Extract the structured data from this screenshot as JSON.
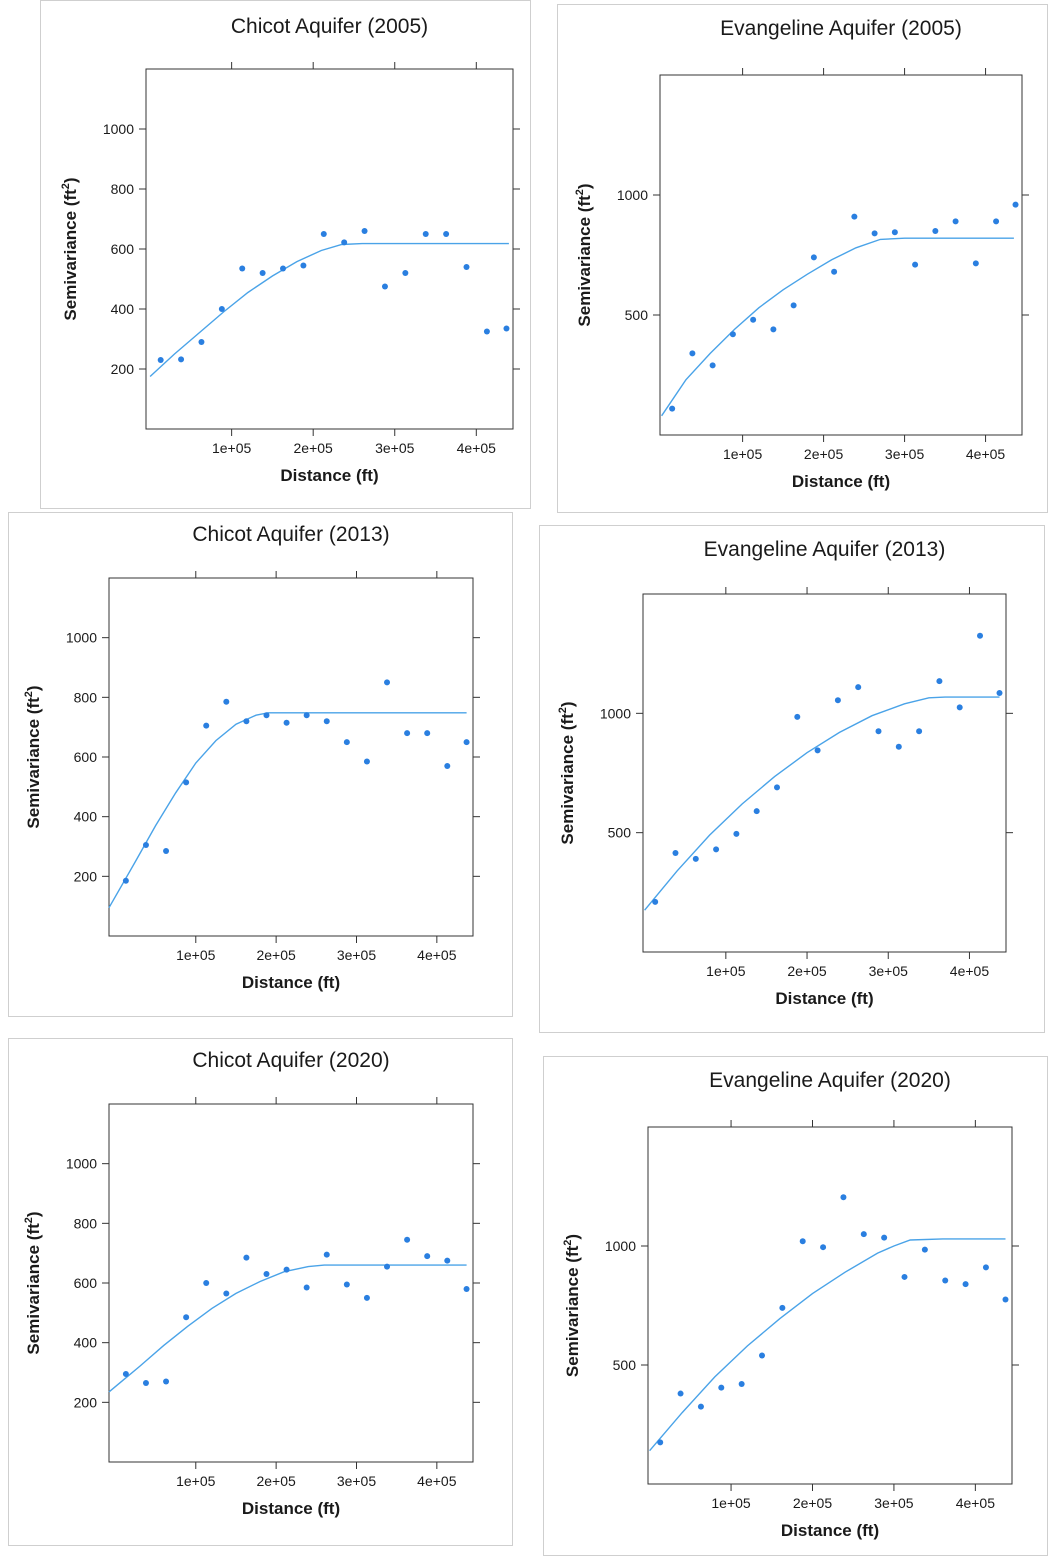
{
  "charts": [
    {
      "title": "Chicot Aquifer (2005)",
      "xlabel": "Distance (ft)",
      "ylabel_main": "Semivariance  (ft",
      "ylabel_sup": "2",
      "ylabel_end": ")",
      "xticks": [
        "1e+05",
        "2e+05",
        "3e+05",
        "4e+05"
      ],
      "yticks": [
        "200",
        "400",
        "600",
        "800",
        "1000"
      ]
    },
    {
      "title": "Evangeline Aquifer (2005)",
      "xlabel": "Distance (ft)",
      "ylabel_main": "Semivariance  (ft",
      "ylabel_sup": "2",
      "ylabel_end": ")",
      "xticks": [
        "1e+05",
        "2e+05",
        "3e+05",
        "4e+05"
      ],
      "yticks": [
        "500",
        "1000"
      ]
    },
    {
      "title": "Chicot Aquifer (2013)",
      "xlabel": "Distance (ft)",
      "ylabel_main": "Semivariance  (ft",
      "ylabel_sup": "2",
      "ylabel_end": ")",
      "xticks": [
        "1e+05",
        "2e+05",
        "3e+05",
        "4e+05"
      ],
      "yticks": [
        "200",
        "400",
        "600",
        "800",
        "1000"
      ]
    },
    {
      "title": "Evangeline Aquifer (2013)",
      "xlabel": "Distance (ft)",
      "ylabel_main": "Semivariance  (ft",
      "ylabel_sup": "2",
      "ylabel_end": ")",
      "xticks": [
        "1e+05",
        "2e+05",
        "3e+05",
        "4e+05"
      ],
      "yticks": [
        "500",
        "1000"
      ]
    },
    {
      "title": "Chicot Aquifer (2020)",
      "xlabel": "Distance (ft)",
      "ylabel_main": "Semivariance  (ft",
      "ylabel_sup": "2",
      "ylabel_end": ")",
      "xticks": [
        "1e+05",
        "2e+05",
        "3e+05",
        "4e+05"
      ],
      "yticks": [
        "200",
        "400",
        "600",
        "800",
        "1000"
      ]
    },
    {
      "title": "Evangeline Aquifer (2020)",
      "xlabel": "Distance (ft)",
      "ylabel_main": "Semivariance  (ft",
      "ylabel_sup": "2",
      "ylabel_end": ")",
      "xticks": [
        "1e+05",
        "2e+05",
        "3e+05",
        "4e+05"
      ],
      "yticks": [
        "500",
        "1000"
      ]
    }
  ],
  "chart_data": [
    {
      "type": "scatter",
      "title": "Chicot Aquifer (2005)",
      "xlabel": "Distance (ft)",
      "ylabel": "Semivariance (ft2)",
      "xlim": [
        -5000,
        445000
      ],
      "ylim": [
        0,
        1200
      ],
      "xticks": [
        100000,
        200000,
        300000,
        400000
      ],
      "yticks": [
        200,
        400,
        600,
        800,
        1000
      ],
      "point_color": "#2a7fe0",
      "line_color": "#4aa3e8",
      "points": {
        "x": [
          13000,
          38000,
          63000,
          88000,
          113000,
          138000,
          163000,
          188000,
          213000,
          238000,
          263000,
          288000,
          313000,
          338000,
          363000,
          388000,
          413000,
          437000
        ],
        "y": [
          230,
          232,
          290,
          400,
          535,
          520,
          535,
          545,
          650,
          622,
          660,
          475,
          520,
          650,
          650,
          540,
          325,
          335
        ]
      },
      "model": {
        "x": [
          0,
          30000,
          60000,
          90000,
          120000,
          150000,
          180000,
          210000,
          235000,
          260000,
          300000,
          350000,
          400000,
          440000
        ],
        "y": [
          175,
          250,
          320,
          390,
          455,
          510,
          558,
          595,
          615,
          618,
          618,
          618,
          618,
          618
        ]
      }
    },
    {
      "type": "scatter",
      "title": "Evangeline Aquifer (2005)",
      "xlabel": "Distance (ft)",
      "ylabel": "Semivariance (ft2)",
      "xlim": [
        -2000,
        445000
      ],
      "ylim": [
        0,
        1500
      ],
      "xticks": [
        100000,
        200000,
        300000,
        400000
      ],
      "yticks": [
        500,
        1000
      ],
      "point_color": "#2a7fe0",
      "line_color": "#4aa3e8",
      "points": {
        "x": [
          13000,
          38000,
          63000,
          88000,
          113000,
          138000,
          163000,
          188000,
          213000,
          238000,
          263000,
          288000,
          313000,
          338000,
          363000,
          388000,
          413000,
          437000
        ],
        "y": [
          110,
          340,
          290,
          420,
          480,
          440,
          540,
          740,
          680,
          910,
          840,
          845,
          710,
          850,
          890,
          715,
          890,
          960
        ]
      },
      "model": {
        "x": [
          0,
          30000,
          60000,
          90000,
          120000,
          150000,
          180000,
          210000,
          240000,
          270000,
          300000,
          350000,
          400000,
          435000
        ],
        "y": [
          80,
          230,
          340,
          440,
          530,
          605,
          670,
          730,
          780,
          815,
          820,
          820,
          820,
          820
        ]
      }
    },
    {
      "type": "scatter",
      "title": "Chicot Aquifer (2013)",
      "xlabel": "Distance (ft)",
      "ylabel": "Semivariance (ft2)",
      "xlim": [
        -8000,
        445000
      ],
      "ylim": [
        0,
        1200
      ],
      "xticks": [
        100000,
        200000,
        300000,
        400000
      ],
      "yticks": [
        200,
        400,
        600,
        800,
        1000
      ],
      "point_color": "#2a7fe0",
      "line_color": "#4aa3e8",
      "points": {
        "x": [
          13000,
          38000,
          63000,
          88000,
          113000,
          138000,
          163000,
          188000,
          213000,
          238000,
          263000,
          288000,
          313000,
          338000,
          363000,
          388000,
          413000,
          437000
        ],
        "y": [
          185,
          305,
          285,
          515,
          705,
          785,
          720,
          740,
          715,
          740,
          720,
          650,
          585,
          850,
          680,
          680,
          570,
          650
        ]
      },
      "model": {
        "x": [
          -8000,
          25000,
          50000,
          75000,
          100000,
          125000,
          150000,
          175000,
          190000,
          220000,
          300000,
          400000,
          437000
        ],
        "y": [
          95,
          250,
          370,
          480,
          580,
          655,
          710,
          740,
          748,
          748,
          748,
          748,
          748
        ]
      }
    },
    {
      "type": "scatter",
      "title": "Evangeline Aquifer (2013)",
      "xlabel": "Distance (ft)",
      "ylabel": "Semivariance (ft2)",
      "xlim": [
        -2000,
        445000
      ],
      "ylim": [
        0,
        1500
      ],
      "xticks": [
        100000,
        200000,
        300000,
        400000
      ],
      "yticks": [
        500,
        1000
      ],
      "point_color": "#2a7fe0",
      "line_color": "#4aa3e8",
      "points": {
        "x": [
          13000,
          38000,
          63000,
          88000,
          113000,
          138000,
          163000,
          188000,
          213000,
          238000,
          263000,
          288000,
          313000,
          338000,
          363000,
          388000,
          413000,
          437000
        ],
        "y": [
          210,
          415,
          390,
          430,
          495,
          590,
          690,
          985,
          845,
          1055,
          1110,
          925,
          860,
          925,
          1135,
          1025,
          1325,
          1085
        ]
      },
      "model": {
        "x": [
          0,
          40000,
          80000,
          120000,
          160000,
          200000,
          240000,
          280000,
          320000,
          350000,
          370000,
          400000,
          437000
        ],
        "y": [
          175,
          340,
          490,
          620,
          735,
          835,
          920,
          990,
          1040,
          1065,
          1068,
          1068,
          1068
        ]
      }
    },
    {
      "type": "scatter",
      "title": "Chicot Aquifer (2020)",
      "xlabel": "Distance (ft)",
      "ylabel": "Semivariance (ft2)",
      "xlim": [
        -8000,
        445000
      ],
      "ylim": [
        0,
        1200
      ],
      "xticks": [
        100000,
        200000,
        300000,
        400000
      ],
      "yticks": [
        200,
        400,
        600,
        800,
        1000
      ],
      "point_color": "#2a7fe0",
      "line_color": "#4aa3e8",
      "points": {
        "x": [
          13000,
          38000,
          63000,
          88000,
          113000,
          138000,
          163000,
          188000,
          213000,
          238000,
          263000,
          288000,
          313000,
          338000,
          363000,
          388000,
          413000,
          437000
        ],
        "y": [
          295,
          265,
          270,
          485,
          600,
          565,
          685,
          630,
          645,
          585,
          695,
          595,
          550,
          655,
          745,
          690,
          675,
          580
        ]
      },
      "model": {
        "x": [
          -8000,
          30000,
          60000,
          90000,
          120000,
          150000,
          180000,
          210000,
          240000,
          260000,
          300000,
          400000,
          437000
        ],
        "y": [
          235,
          320,
          390,
          455,
          515,
          565,
          605,
          638,
          655,
          660,
          660,
          660,
          660
        ]
      }
    },
    {
      "type": "scatter",
      "title": "Evangeline Aquifer (2020)",
      "xlabel": "Distance (ft)",
      "ylabel": "Semivariance (ft2)",
      "xlim": [
        -2000,
        445000
      ],
      "ylim": [
        0,
        1500
      ],
      "xticks": [
        100000,
        200000,
        300000,
        400000
      ],
      "yticks": [
        500,
        1000
      ],
      "point_color": "#2a7fe0",
      "line_color": "#4aa3e8",
      "points": {
        "x": [
          13000,
          38000,
          63000,
          88000,
          113000,
          138000,
          163000,
          188000,
          213000,
          238000,
          263000,
          288000,
          313000,
          338000,
          363000,
          388000,
          413000,
          437000
        ],
        "y": [
          175,
          380,
          325,
          405,
          420,
          540,
          740,
          1020,
          995,
          1205,
          1050,
          1035,
          870,
          985,
          855,
          840,
          910,
          775
        ]
      },
      "model": {
        "x": [
          0,
          40000,
          80000,
          120000,
          160000,
          200000,
          240000,
          280000,
          300000,
          320000,
          360000,
          400000,
          437000
        ],
        "y": [
          140,
          300,
          450,
          580,
          695,
          800,
          890,
          970,
          1000,
          1025,
          1030,
          1030,
          1030
        ]
      }
    }
  ]
}
